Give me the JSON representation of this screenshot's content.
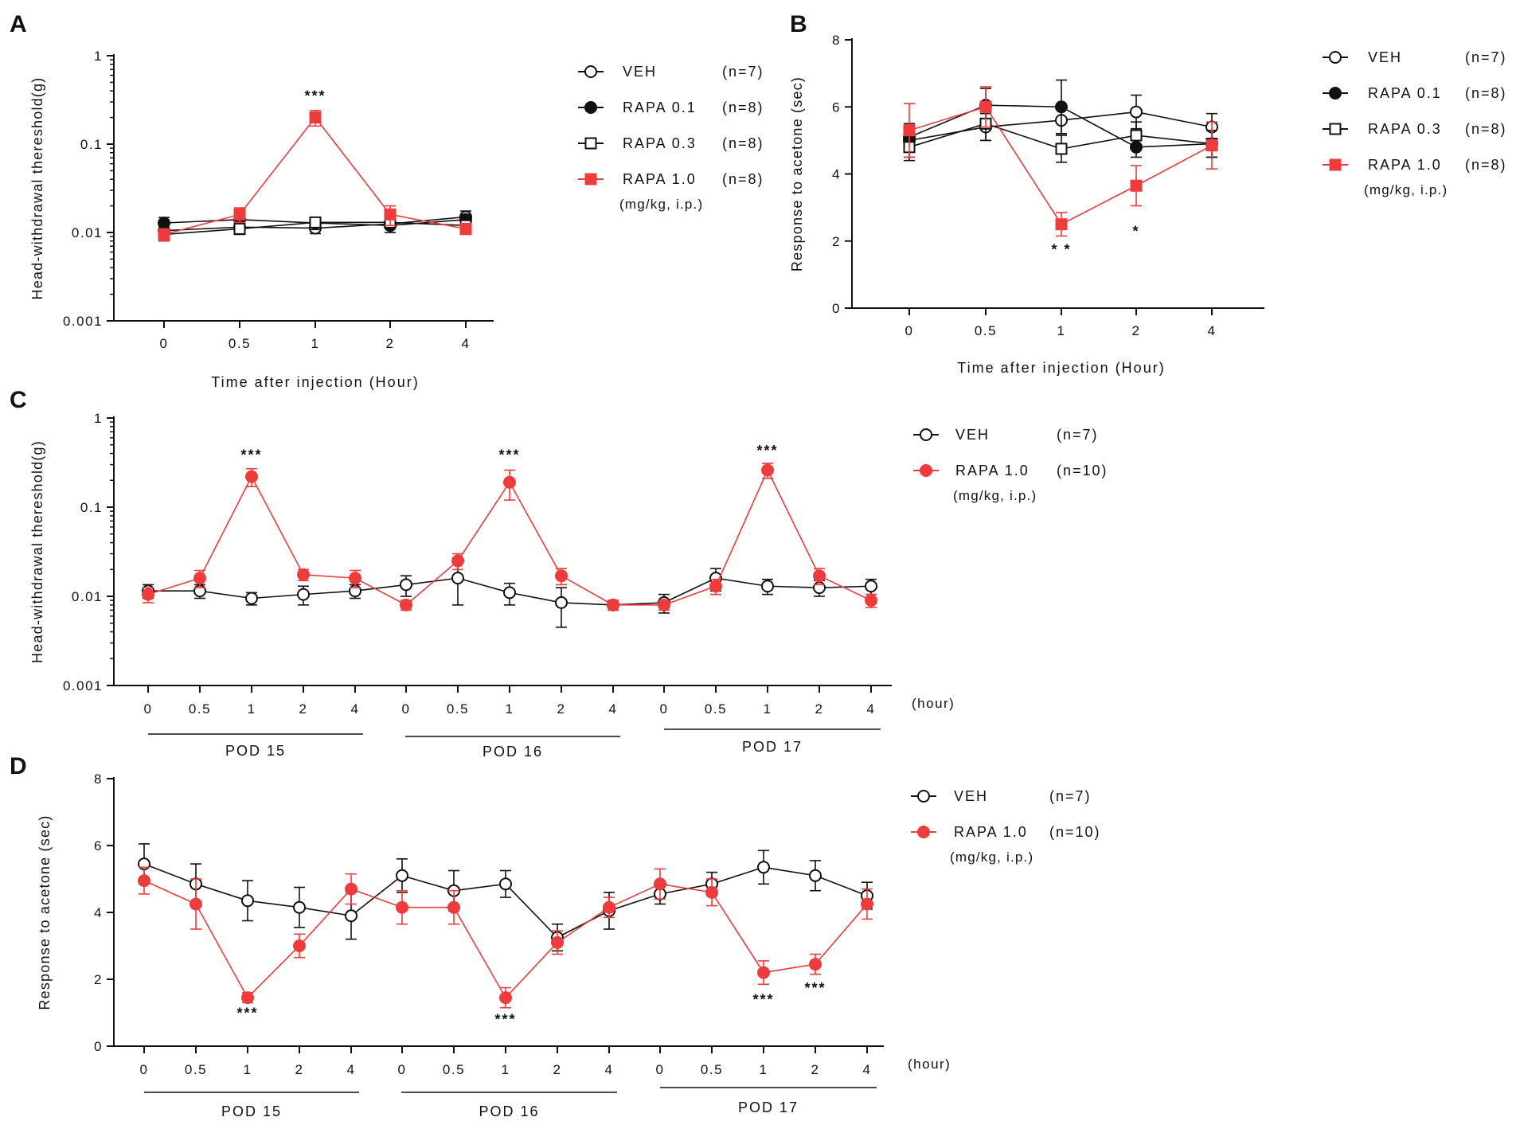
{
  "colors": {
    "veh": "#111111",
    "rapa_high": "#ee3b3b",
    "axis": "#111111"
  },
  "chart_data": [
    {
      "id": "A",
      "type": "line",
      "letter": "A",
      "scale": "log",
      "ylabel": "Head-withdrawal thereshold(g)",
      "xlabel": "Time after injection (Hour)",
      "ylim": [
        0.001,
        1
      ],
      "yticks": [
        "0.001",
        "0.01",
        "0.1",
        "1"
      ],
      "categories": [
        "0",
        "0.5",
        "1",
        "2",
        "4"
      ],
      "series": [
        {
          "name": "VEH",
          "n": "(n=7)",
          "marker": "circle-open",
          "color": "#111111",
          "values": [
            0.0105,
            0.0115,
            0.0112,
            0.0125,
            0.015
          ],
          "err": [
            0.0015,
            0.0015,
            0.0015,
            0.0015,
            0.0025
          ]
        },
        {
          "name": "RAPA 0.1",
          "n": "(n=8)",
          "marker": "circle-filled",
          "color": "#111111",
          "values": [
            0.0128,
            0.014,
            0.0128,
            0.012,
            0.014
          ],
          "err": [
            0.002,
            0.002,
            0.002,
            0.002,
            0.002
          ]
        },
        {
          "name": "RAPA 0.3",
          "n": "(n=8)",
          "marker": "square-open",
          "color": "#111111",
          "values": [
            0.0095,
            0.011,
            0.013,
            0.013,
            0.012
          ],
          "err": [
            0.0015,
            0.0015,
            0.0015,
            0.0015,
            0.0015
          ]
        },
        {
          "name": "RAPA 1.0",
          "n": "(n=8)",
          "marker": "square-filled",
          "color": "#ee3b3b",
          "values": [
            0.0095,
            0.016,
            0.2,
            0.016,
            0.011
          ],
          "err": [
            0.0015,
            0.003,
            0.04,
            0.004,
            0.0015
          ]
        }
      ],
      "unit": "(mg/kg, i.p.)",
      "annotations": [
        {
          "text": "***",
          "index": 2,
          "value": 0.31
        }
      ]
    },
    {
      "id": "B",
      "type": "line",
      "letter": "B",
      "scale": "linear",
      "ylabel": "Response to acetone (sec)",
      "xlabel": "Time after injection (Hour)",
      "ylim": [
        0,
        8
      ],
      "yticks": [
        "0",
        "2",
        "4",
        "6",
        "8"
      ],
      "categories": [
        "0",
        "0.5",
        "1",
        "2",
        "4"
      ],
      "series": [
        {
          "name": "VEH",
          "n": "(n=7)",
          "marker": "circle-open",
          "color": "#111111",
          "values": [
            5.0,
            5.4,
            5.6,
            5.85,
            5.4
          ],
          "err": [
            0.5,
            0.4,
            0.4,
            0.5,
            0.4
          ]
        },
        {
          "name": "RAPA 0.1",
          "n": "(n=8)",
          "marker": "circle-filled",
          "color": "#111111",
          "values": [
            5.1,
            6.05,
            6.0,
            4.8,
            4.9
          ],
          "err": [
            0.4,
            0.5,
            0.8,
            0.3,
            0.4
          ]
        },
        {
          "name": "RAPA 0.3",
          "n": "(n=8)",
          "marker": "square-open",
          "color": "#111111",
          "values": [
            4.8,
            5.5,
            4.75,
            5.15,
            4.9
          ],
          "err": [
            0.4,
            0.5,
            0.4,
            0.4,
            0.4
          ]
        },
        {
          "name": "RAPA 1.0",
          "n": "(n=8)",
          "marker": "square-filled",
          "color": "#ee3b3b",
          "values": [
            5.3,
            6.0,
            2.5,
            3.65,
            4.85
          ],
          "err": [
            0.8,
            0.6,
            0.35,
            0.6,
            0.7
          ]
        }
      ],
      "unit": "(mg/kg, i.p.)",
      "annotations": [
        {
          "text": "* *",
          "index": 2,
          "value": 1.6
        },
        {
          "text": "*",
          "index": 3,
          "value": 2.15
        }
      ]
    },
    {
      "id": "C",
      "type": "line",
      "letter": "C",
      "scale": "log",
      "ylabel": "Head-withdrawal thereshold(g)",
      "ylim": [
        0.001,
        1
      ],
      "yticks": [
        "0.001",
        "0.01",
        "0.1",
        "1"
      ],
      "categories": [
        "0",
        "0.5",
        "1",
        "2",
        "4",
        "0",
        "0.5",
        "1",
        "2",
        "4",
        "0",
        "0.5",
        "1",
        "2",
        "4"
      ],
      "hour_label": "(hour)",
      "groups": [
        {
          "label": "POD 15"
        },
        {
          "label": "POD 16"
        },
        {
          "label": "POD 17"
        }
      ],
      "series": [
        {
          "name": "VEH",
          "n": "(n=7)",
          "marker": "circle-open",
          "color": "#111111",
          "values": [
            0.0115,
            0.0115,
            0.0095,
            0.0105,
            0.0115,
            0.0135,
            0.016,
            0.011,
            0.0085,
            0.008,
            0.0085,
            0.016,
            0.013,
            0.0125,
            0.013
          ],
          "err": [
            0.002,
            0.002,
            0.0015,
            0.0025,
            0.002,
            0.0035,
            0.008,
            0.003,
            0.004,
            0.001,
            0.002,
            0.0045,
            0.0025,
            0.0025,
            0.0025
          ]
        },
        {
          "name": "RAPA 1.0",
          "n": "(n=10)",
          "marker": "circle-filled",
          "color": "#ee3b3b",
          "values": [
            0.0105,
            0.016,
            0.22,
            0.0175,
            0.016,
            0.008,
            0.025,
            0.19,
            0.017,
            0.008,
            0.008,
            0.013,
            0.26,
            0.017,
            0.009
          ],
          "err": [
            0.002,
            0.0035,
            0.05,
            0.0025,
            0.0035,
            0.001,
            0.005,
            0.07,
            0.0035,
            0.001,
            0.001,
            0.0025,
            0.05,
            0.0035,
            0.0015
          ]
        }
      ],
      "unit": "(mg/kg, i.p.)",
      "annotations": [
        {
          "text": "***",
          "index": 2,
          "value": 0.34
        },
        {
          "text": "***",
          "index": 7,
          "value": 0.34
        },
        {
          "text": "***",
          "index": 12,
          "value": 0.38
        }
      ]
    },
    {
      "id": "D",
      "type": "line",
      "letter": "D",
      "scale": "linear",
      "ylabel": "Response to acetone (sec)",
      "ylim": [
        0,
        8
      ],
      "yticks": [
        "0",
        "2",
        "4",
        "6",
        "8"
      ],
      "categories": [
        "0",
        "0.5",
        "1",
        "2",
        "4",
        "0",
        "0.5",
        "1",
        "2",
        "4",
        "0",
        "0.5",
        "1",
        "2",
        "4"
      ],
      "hour_label": "(hour)",
      "groups": [
        {
          "label": "POD 15"
        },
        {
          "label": "POD 16"
        },
        {
          "label": "POD 17"
        }
      ],
      "series": [
        {
          "name": "VEH",
          "n": "(n=7)",
          "marker": "circle-open",
          "color": "#111111",
          "values": [
            5.45,
            4.85,
            4.35,
            4.15,
            3.9,
            5.1,
            4.65,
            4.85,
            3.25,
            4.05,
            4.55,
            4.85,
            5.35,
            5.1,
            4.5
          ],
          "err": [
            0.6,
            0.6,
            0.6,
            0.6,
            0.7,
            0.5,
            0.6,
            0.4,
            0.4,
            0.55,
            0.3,
            0.35,
            0.5,
            0.45,
            0.4
          ]
        },
        {
          "name": "RAPA 1.0",
          "n": "(n=10)",
          "marker": "circle-filled",
          "color": "#ee3b3b",
          "values": [
            4.95,
            4.25,
            1.45,
            3.0,
            4.7,
            4.15,
            4.15,
            1.45,
            3.1,
            4.15,
            4.85,
            4.6,
            2.2,
            2.45,
            4.25
          ],
          "err": [
            0.4,
            0.75,
            0.15,
            0.35,
            0.45,
            0.5,
            0.5,
            0.3,
            0.35,
            0.3,
            0.45,
            0.4,
            0.35,
            0.3,
            0.45
          ]
        }
      ],
      "unit": "(mg/kg, i.p.)",
      "annotations": [
        {
          "text": "***",
          "index": 2,
          "value": 0.85
        },
        {
          "text": "***",
          "index": 7,
          "value": 0.65
        },
        {
          "text": "***",
          "index": 12,
          "value": 1.25
        },
        {
          "text": "***",
          "index": 13,
          "value": 1.6
        }
      ]
    }
  ]
}
